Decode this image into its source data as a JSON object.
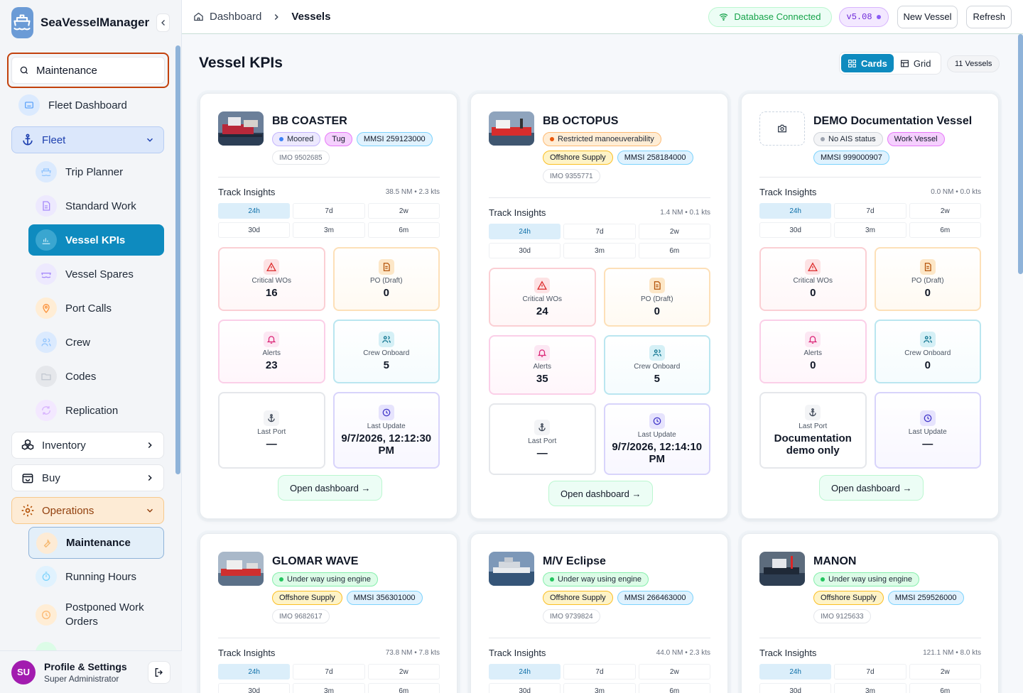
{
  "app": {
    "name": "SeaVesselManager"
  },
  "search": {
    "value": "Maintenance",
    "placeholder": "Search"
  },
  "sidebar": {
    "fleet_dashboard": "Fleet Dashboard",
    "fleet": "Fleet",
    "fleet_items": [
      "Trip Planner",
      "Standard Work",
      "Vessel KPIs",
      "Vessel Spares",
      "Port Calls",
      "Crew",
      "Codes",
      "Replication"
    ],
    "inventory": "Inventory",
    "buy": "Buy",
    "operations": "Operations",
    "operations_items": [
      "Maintenance",
      "Running Hours",
      "Postponed Work Orders"
    ]
  },
  "profile": {
    "initials": "SU",
    "title": "Profile & Settings",
    "role": "Super Administrator"
  },
  "breadcrumb": {
    "home": "Dashboard",
    "current": "Vessels"
  },
  "topbar": {
    "db_status": "Database Connected",
    "version": "v5.08",
    "new_vessel": "New Vessel",
    "refresh": "Refresh"
  },
  "page": {
    "title": "Vessel KPIs",
    "view_cards": "Cards",
    "view_grid": "Grid",
    "count": "11 Vessels"
  },
  "labels": {
    "track_insights": "Track Insights",
    "periods": [
      "24h",
      "7d",
      "2w",
      "30d",
      "3m",
      "6m"
    ],
    "critical_wos": "Critical WOs",
    "po_draft": "PO (Draft)",
    "alerts": "Alerts",
    "crew_onboard": "Crew Onboard",
    "last_port": "Last Port",
    "last_update": "Last Update",
    "open_dashboard": "Open dashboard →"
  },
  "vessels": [
    {
      "name": "BB COASTER",
      "status": "Moored",
      "type": "Tug",
      "mmsi": "MMSI 259123000",
      "imo": "IMO 9502685",
      "track": "38.5 NM • 2.3 kts",
      "critical_wos": "16",
      "po_draft": "0",
      "alerts": "23",
      "crew_onboard": "5",
      "last_port": "—",
      "last_update": "9/7/2026, 12:12:30 PM"
    },
    {
      "name": "BB OCTOPUS",
      "status": "Restricted manoeuverability",
      "type": "Offshore Supply",
      "mmsi": "MMSI 258184000",
      "imo": "IMO 9355771",
      "track": "1.4 NM • 0.1 kts",
      "critical_wos": "24",
      "po_draft": "0",
      "alerts": "35",
      "crew_onboard": "5",
      "last_port": "—",
      "last_update": "9/7/2026, 12:14:10 PM"
    },
    {
      "name": "DEMO Documentation Vessel",
      "status": "No AIS status",
      "type": "Work Vessel",
      "mmsi": "MMSI 999000907",
      "imo": "",
      "track": "0.0 NM • 0.0 kts",
      "critical_wos": "0",
      "po_draft": "0",
      "alerts": "0",
      "crew_onboard": "0",
      "last_port": "Documentation demo only",
      "last_update": "—"
    },
    {
      "name": "GLOMAR WAVE",
      "status": "Under way using engine",
      "type": "Offshore Supply",
      "mmsi": "MMSI 356301000",
      "imo": "IMO 9682617",
      "track": "73.8 NM • 7.8 kts"
    },
    {
      "name": "M/V Eclipse",
      "status": "Under way using engine",
      "type": "Offshore Supply",
      "mmsi": "MMSI 266463000",
      "imo": "IMO 9739824",
      "track": "44.0 NM • 2.3 kts"
    },
    {
      "name": "MANON",
      "status": "Under way using engine",
      "type": "Offshore Supply",
      "mmsi": "MMSI 259526000",
      "imo": "IMO 9125633",
      "track": "121.1 NM • 8.0 kts"
    }
  ],
  "colors": {
    "accent": "#0e8bbf",
    "search_outline": "#c2410c",
    "status_connected": "#16a34a"
  }
}
